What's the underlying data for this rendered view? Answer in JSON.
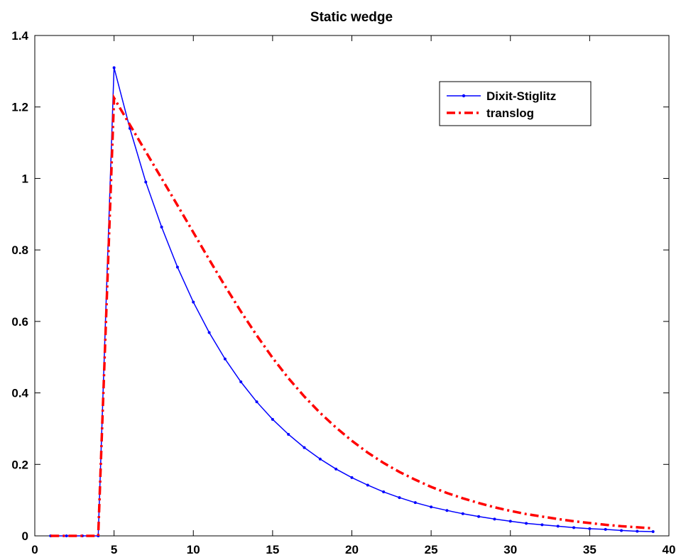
{
  "chart_data": {
    "type": "line",
    "title": "Static wedge",
    "xlabel": "",
    "ylabel": "",
    "xlim": [
      0,
      40
    ],
    "ylim": [
      0,
      1.4
    ],
    "xticks": [
      0,
      5,
      10,
      15,
      20,
      25,
      30,
      35,
      40
    ],
    "yticks": [
      0,
      0.2,
      0.4,
      0.6,
      0.8,
      1,
      1.2,
      1.4
    ],
    "xtick_labels": [
      "0",
      "5",
      "10",
      "15",
      "20",
      "25",
      "30",
      "35",
      "40"
    ],
    "ytick_labels": [
      "0",
      "0.2",
      "0.4",
      "0.6",
      "0.8",
      "1",
      "1.2",
      "1.4"
    ],
    "grid": false,
    "legend_position": "top-right",
    "x": [
      1,
      2,
      3,
      4,
      5,
      6,
      7,
      8,
      9,
      10,
      11,
      12,
      13,
      14,
      15,
      16,
      17,
      18,
      19,
      20,
      21,
      22,
      23,
      24,
      25,
      26,
      27,
      28,
      29,
      30,
      31,
      32,
      33,
      34,
      35,
      36,
      37,
      38,
      39
    ],
    "series": [
      {
        "name": "Dixit-Stiglitz",
        "color": "#0000ff",
        "style": "solid-dots",
        "values": [
          0,
          0,
          0,
          0,
          1.31,
          1.14,
          0.99,
          0.864,
          0.752,
          0.654,
          0.569,
          0.495,
          0.431,
          0.375,
          0.326,
          0.284,
          0.247,
          0.215,
          0.187,
          0.163,
          0.142,
          0.123,
          0.107,
          0.093,
          0.081,
          0.071,
          0.062,
          0.054,
          0.047,
          0.041,
          0.035,
          0.031,
          0.027,
          0.023,
          0.02,
          0.018,
          0.015,
          0.013,
          0.012
        ]
      },
      {
        "name": "translog",
        "color": "#ff0000",
        "style": "dash-dot",
        "values": [
          0,
          0,
          0,
          0,
          1.225,
          1.15,
          1.075,
          1.0,
          0.925,
          0.849,
          0.773,
          0.699,
          0.628,
          0.561,
          0.498,
          0.441,
          0.39,
          0.344,
          0.303,
          0.266,
          0.233,
          0.204,
          0.179,
          0.157,
          0.137,
          0.12,
          0.105,
          0.092,
          0.08,
          0.07,
          0.061,
          0.054,
          0.047,
          0.041,
          0.036,
          0.031,
          0.027,
          0.024,
          0.021
        ]
      }
    ]
  }
}
